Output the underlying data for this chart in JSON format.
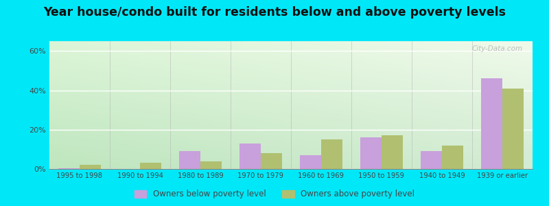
{
  "categories": [
    "1995 to 1998",
    "1990 to 1994",
    "1980 to 1989",
    "1970 to 1979",
    "1960 to 1969",
    "1950 to 1959",
    "1940 to 1949",
    "1939 or earlier"
  ],
  "below_poverty": [
    0.5,
    0.0,
    9.0,
    13.0,
    7.0,
    16.0,
    9.0,
    46.0
  ],
  "above_poverty": [
    2.0,
    3.0,
    4.0,
    8.0,
    15.0,
    17.0,
    12.0,
    41.0
  ],
  "below_color": "#c8a0dc",
  "above_color": "#b0c070",
  "title": "Year house/condo built for residents below and above poverty levels",
  "title_fontsize": 12.5,
  "legend_below": "Owners below poverty level",
  "legend_above": "Owners above poverty level",
  "ylim": [
    0,
    65
  ],
  "yticks": [
    0,
    20,
    40,
    60
  ],
  "ytick_labels": [
    "0%",
    "20%",
    "40%",
    "60%"
  ],
  "bg_outer": "#00e8f8",
  "watermark": "City-Data.com"
}
